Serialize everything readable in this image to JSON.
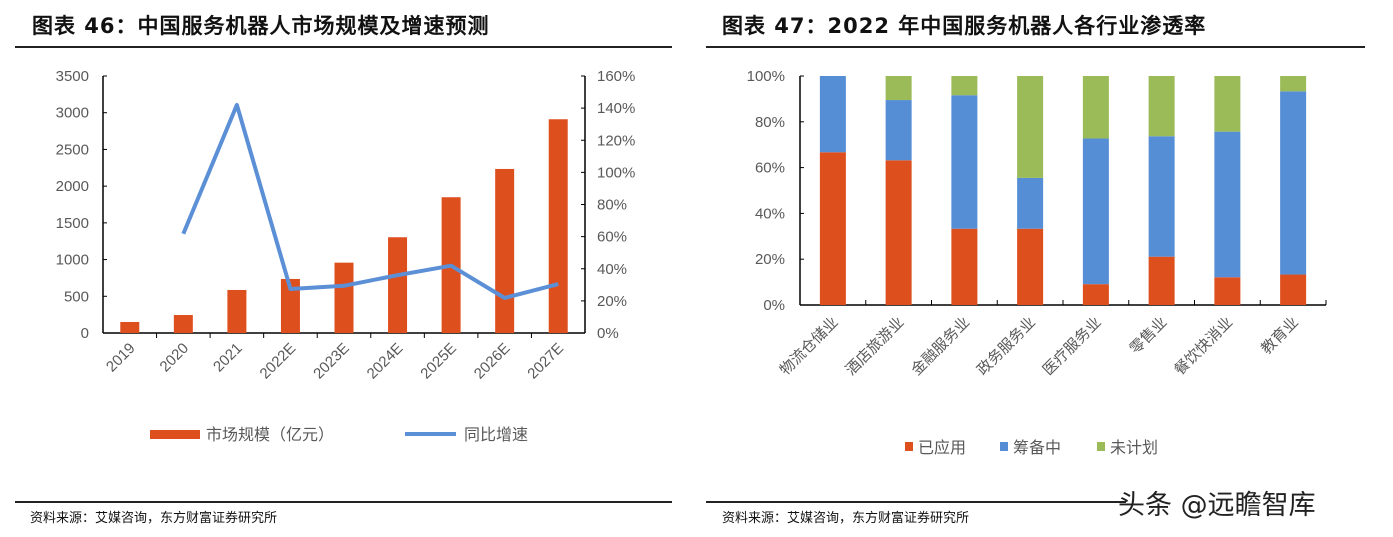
{
  "left": {
    "title": "图表 46：中国服务机器人市场规模及增速预测",
    "source": "资料来源：艾媒咨询，东方财富证券研究所"
  },
  "right": {
    "title": "图表 47：2022 年中国服务机器人各行业渗透率",
    "source": "资料来源：艾媒咨询，东方财富证券研究所"
  },
  "watermark": "头条 @远瞻智库",
  "chart_data": [
    {
      "type": "bar+line",
      "categories": [
        "2019",
        "2020",
        "2021",
        "2022E",
        "2023E",
        "2024E",
        "2025E",
        "2026E",
        "2027E"
      ],
      "series": [
        {
          "name": "市场规模（亿元）",
          "type": "bar",
          "axis": "left",
          "color": "#DE4F1E",
          "values": [
            150,
            245,
            586,
            736,
            958,
            1304,
            1849,
            2234,
            2911
          ]
        },
        {
          "name": "同比增速",
          "type": "line",
          "axis": "right",
          "color": "#5B8FD6",
          "values": [
            null,
            61.8,
            142,
            27.4,
            29.4,
            36,
            41.9,
            21.8,
            30.5
          ]
        }
      ],
      "y_left": {
        "range": [
          0,
          3500
        ],
        "ticks": [
          "0",
          "500",
          "1000",
          "1500",
          "2000",
          "2500",
          "3000",
          "3500"
        ]
      },
      "y_right": {
        "range": [
          0,
          160
        ],
        "ticks": [
          "0%",
          "20%",
          "40%",
          "60%",
          "80%",
          "100%",
          "120%",
          "140%",
          "160%"
        ]
      },
      "grid": false,
      "legend": "bottom"
    },
    {
      "type": "stacked-bar",
      "categories": [
        "物流仓储业",
        "酒店旅游业",
        "金融服务业",
        "政务服务业",
        "医疗服务业",
        "零售业",
        "餐饮快消业",
        "教育业"
      ],
      "series": [
        {
          "name": "已应用",
          "color": "#DE4F1E",
          "values": [
            66.7,
            63.2,
            33.3,
            33.3,
            9.1,
            21.1,
            12.1,
            13.3
          ]
        },
        {
          "name": "筹备中",
          "color": "#558ED5",
          "values": [
            33.3,
            26.3,
            58.3,
            22.2,
            63.6,
            52.6,
            63.6,
            80.0
          ]
        },
        {
          "name": "未计划",
          "color": "#9BBB59",
          "values": [
            0,
            10.5,
            8.4,
            44.5,
            27.3,
            26.3,
            24.3,
            6.7
          ]
        }
      ],
      "y": {
        "range": [
          0,
          100
        ],
        "ticks": [
          "0%",
          "20%",
          "40%",
          "60%",
          "80%",
          "100%"
        ]
      },
      "grid": false,
      "legend": "bottom"
    }
  ]
}
